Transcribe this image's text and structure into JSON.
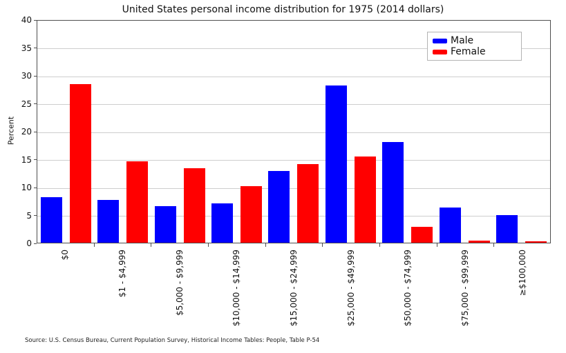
{
  "chart_data": {
    "type": "bar",
    "title": "United States personal income distribution for 1975 (2014 dollars)",
    "xlabel": "",
    "ylabel": "Percent",
    "ylim": [
      0,
      40
    ],
    "yticks": [
      0,
      5,
      10,
      15,
      20,
      25,
      30,
      35,
      40
    ],
    "grid": true,
    "legend_position": "top-right",
    "categories": [
      "$0",
      "$1 - $4,999",
      "$5,000 - $9,999",
      "$10,000 - $14,999",
      "$15,000 - $24,999",
      "$25,000 - $49,999",
      "$50,000 - $74,999",
      "$75,000 - $99,999",
      "≥$100,000"
    ],
    "series": [
      {
        "name": "Male",
        "color": "#0000ff",
        "values": [
          8.1,
          7.6,
          6.5,
          7.0,
          12.8,
          28.1,
          18.0,
          6.3,
          4.9
        ]
      },
      {
        "name": "Female",
        "color": "#ff0000",
        "values": [
          28.4,
          14.6,
          13.3,
          10.1,
          14.1,
          15.4,
          2.8,
          0.4,
          0.2
        ]
      }
    ],
    "source_note": "Source: U.S. Census Bureau, Current Population Survey, Historical Income Tables: People, Table P-54"
  }
}
